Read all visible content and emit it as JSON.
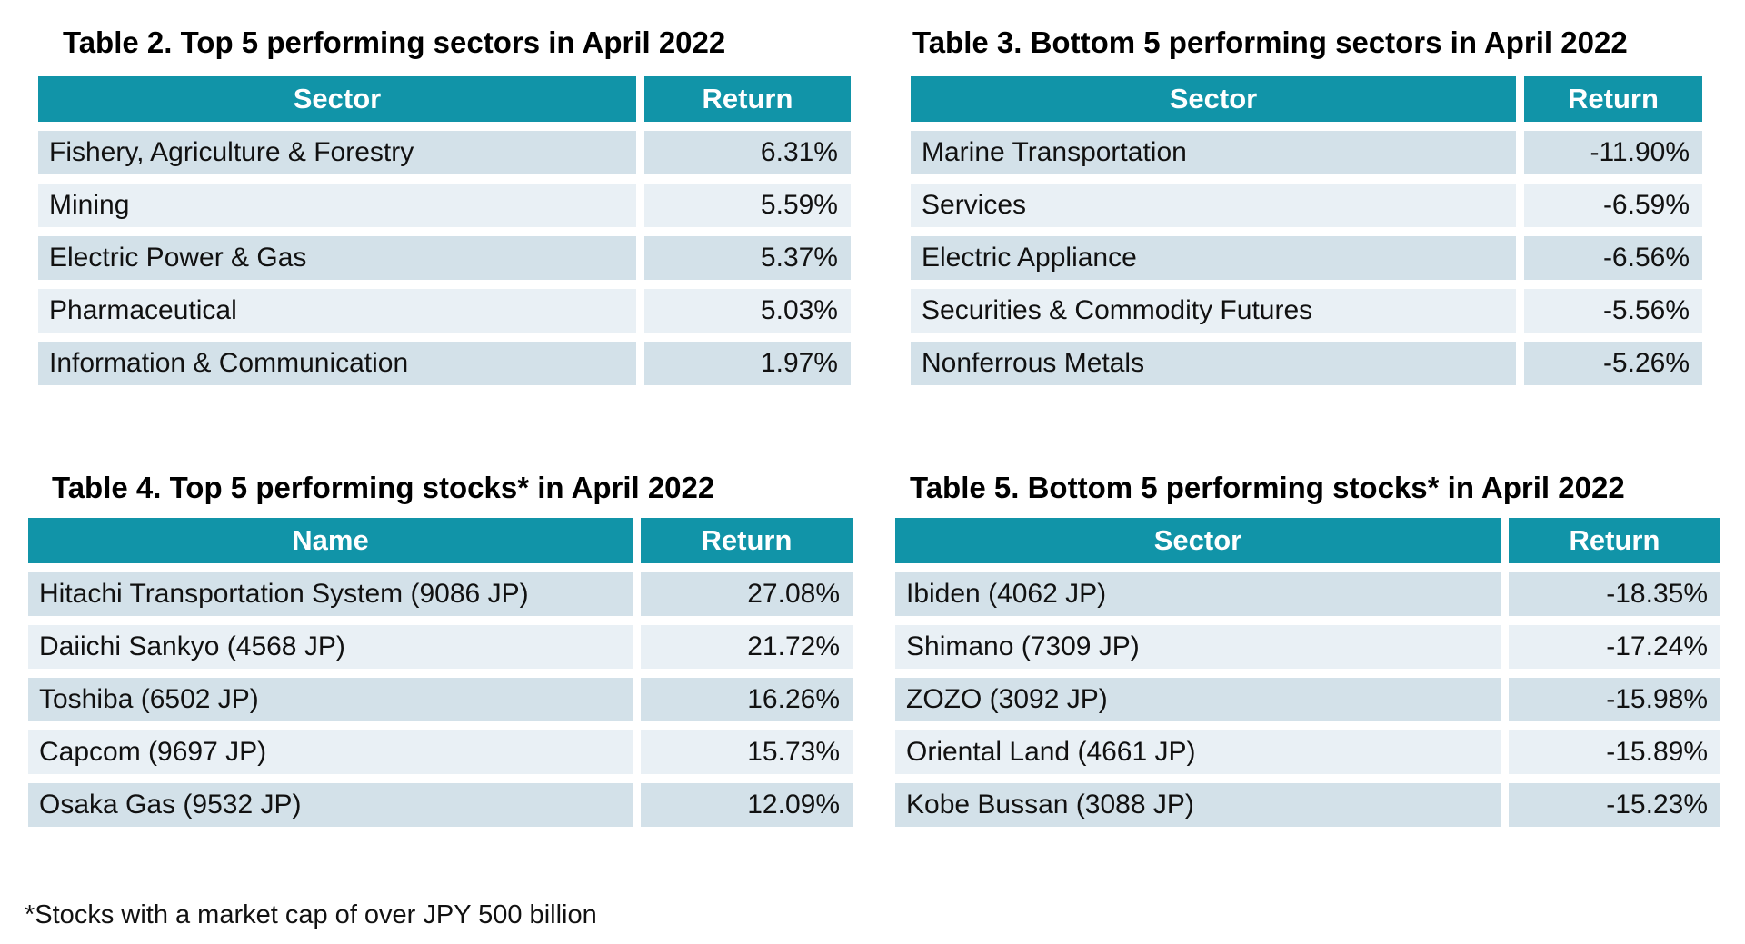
{
  "colors": {
    "header_bg": "#1194A8",
    "row_odd_bg": "#D3E1E9",
    "row_even_bg": "#E9F0F5",
    "header_text": "#FFFFFF",
    "body_text": "#111111"
  },
  "tables": [
    {
      "title": "Table 2. Top 5 performing sectors in April 2022",
      "columns": [
        "Sector",
        "Return"
      ],
      "rows": [
        [
          "Fishery, Agriculture & Forestry",
          "6.31%"
        ],
        [
          "Mining",
          "5.59%"
        ],
        [
          "Electric Power & Gas",
          "5.37%"
        ],
        [
          "Pharmaceutical",
          "5.03%"
        ],
        [
          "Information & Communication",
          "1.97%"
        ]
      ]
    },
    {
      "title": "Table 3. Bottom 5 performing sectors in April 2022",
      "columns": [
        "Sector",
        "Return"
      ],
      "rows": [
        [
          "Marine Transportation",
          "-11.90%"
        ],
        [
          "Services",
          "-6.59%"
        ],
        [
          "Electric Appliance",
          "-6.56%"
        ],
        [
          "Securities & Commodity Futures",
          "-5.56%"
        ],
        [
          "Nonferrous Metals",
          "-5.26%"
        ]
      ]
    },
    {
      "title": "Table 4. Top 5 performing stocks* in April 2022",
      "columns": [
        "Name",
        "Return"
      ],
      "rows": [
        [
          "Hitachi Transportation System (9086 JP)",
          "27.08%"
        ],
        [
          "Daiichi Sankyo (4568 JP)",
          "21.72%"
        ],
        [
          "Toshiba (6502 JP)",
          "16.26%"
        ],
        [
          "Capcom (9697 JP)",
          "15.73%"
        ],
        [
          "Osaka Gas (9532 JP)",
          "12.09%"
        ]
      ]
    },
    {
      "title": "Table 5. Bottom 5 performing stocks* in April 2022",
      "columns": [
        "Sector",
        "Return"
      ],
      "rows": [
        [
          "Ibiden (4062 JP)",
          "-18.35%"
        ],
        [
          "Shimano (7309 JP)",
          "-17.24%"
        ],
        [
          "ZOZO (3092 JP)",
          "-15.98%"
        ],
        [
          "Oriental Land (4661 JP)",
          "-15.89%"
        ],
        [
          "Kobe Bussan (3088 JP)",
          "-15.23%"
        ]
      ]
    }
  ],
  "footnote": "*Stocks with a market cap of over JPY 500 billion"
}
